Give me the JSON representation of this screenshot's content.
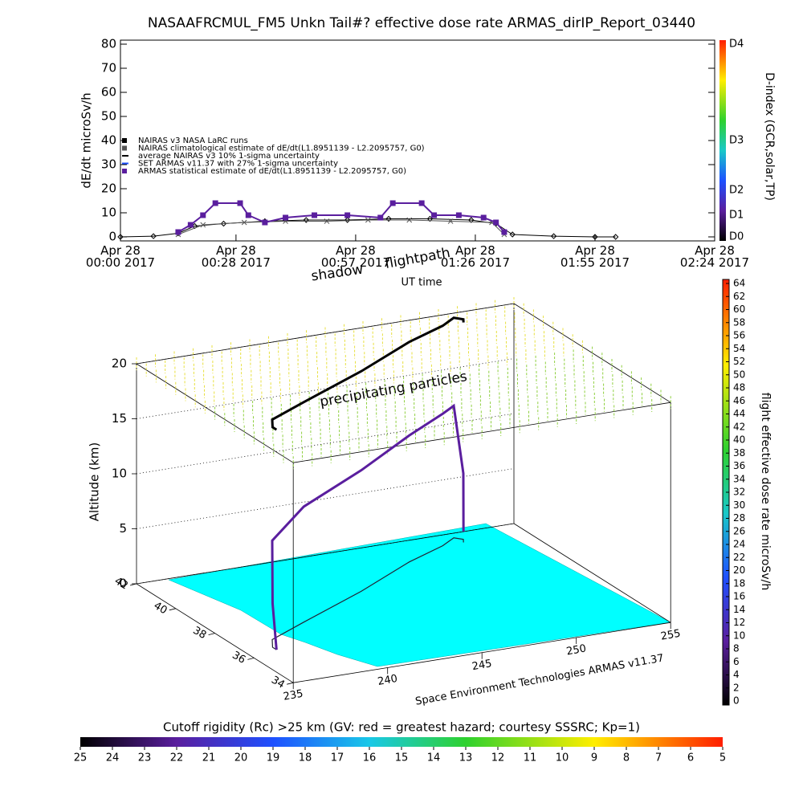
{
  "chart_data": [
    {
      "type": "line",
      "title": "NASAAFRCMUL_FM5 Unkn Tail#? effective dose rate ARMAS_dirIP_Report_03440",
      "y_label": "dE/dt microSv/h",
      "x_label": "UT time",
      "xlim": [
        "2017-04-28T00:00",
        "2017-04-28T02:24"
      ],
      "xticks": [
        {
          "value": "2017-04-28T00:00",
          "label": "Apr 28\n00:00 2017"
        },
        {
          "value": "2017-04-28T00:28",
          "label": "Apr 28\n00:28 2017"
        },
        {
          "value": "2017-04-28T00:57",
          "label": "Apr 28\n00:57 2017"
        },
        {
          "value": "2017-04-28T01:26",
          "label": "Apr 28\n01:26 2017"
        },
        {
          "value": "2017-04-28T01:55",
          "label": "Apr 28\n01:55 2017"
        },
        {
          "value": "2017-04-28T02:24",
          "label": "Apr 28\n02:24 2017"
        }
      ],
      "ylim": [
        0,
        80
      ],
      "yticks": [
        0,
        10,
        20,
        30,
        40,
        50,
        60,
        70,
        80
      ],
      "series": [
        {
          "name": "NAIRAS v3 NASA LaRC runs",
          "color": "#000000",
          "marker": "diamond",
          "x": [
            "2017-04-28T00:00",
            "2017-04-28T00:08",
            "2017-04-28T00:14",
            "2017-04-28T00:18",
            "2017-04-28T00:25",
            "2017-04-28T00:35",
            "2017-04-28T00:45",
            "2017-04-28T00:55",
            "2017-04-28T01:05",
            "2017-04-28T01:15",
            "2017-04-28T01:25",
            "2017-04-28T01:31",
            "2017-04-28T01:35",
            "2017-04-28T01:45",
            "2017-04-28T01:55",
            "2017-04-28T02:00"
          ],
          "values": [
            0,
            0.3,
            1.5,
            4.5,
            5.5,
            6.5,
            7,
            7,
            7.5,
            7.5,
            7,
            5.5,
            1,
            0.3,
            0,
            0
          ]
        },
        {
          "name": "NAIRAS climatological estimate of dE/dt(L1.8951139 - L2.2095757, G0)",
          "color": "#555555",
          "marker": "cross",
          "x": [
            "2017-04-28T00:14",
            "2017-04-28T00:20",
            "2017-04-28T00:30",
            "2017-04-28T00:40",
            "2017-04-28T00:50",
            "2017-04-28T01:00",
            "2017-04-28T01:10",
            "2017-04-28T01:20",
            "2017-04-28T01:30",
            "2017-04-28T01:33"
          ],
          "values": [
            1,
            5,
            6,
            6.5,
            6.5,
            7,
            7,
            6.5,
            6,
            1
          ]
        },
        {
          "name": "ARMAS statistical estimate of dE/dt(L1.8951139 - L2.2095757, G0)",
          "color": "#5a1e9e",
          "marker": "square",
          "x": [
            "2017-04-28T00:14",
            "2017-04-28T00:17",
            "2017-04-28T00:20",
            "2017-04-28T00:23",
            "2017-04-28T00:29",
            "2017-04-28T00:31",
            "2017-04-28T00:35",
            "2017-04-28T00:40",
            "2017-04-28T00:47",
            "2017-04-28T00:55",
            "2017-04-28T01:03",
            "2017-04-28T01:06",
            "2017-04-28T01:13",
            "2017-04-28T01:16",
            "2017-04-28T01:22",
            "2017-04-28T01:28",
            "2017-04-28T01:31",
            "2017-04-28T01:33"
          ],
          "values": [
            2,
            5,
            9,
            14,
            14,
            9,
            6,
            8,
            9,
            9,
            8,
            14,
            14,
            9,
            9,
            8,
            6,
            2
          ]
        }
      ],
      "legend_notes": [
        "average NAIRAS v3 10% 1-sigma uncertainty",
        "SET ARMAS v11.37 with 27% 1-sigma uncertainty"
      ],
      "colorbar": {
        "label": "D-index (GCR,solar,TP)",
        "ticks": [
          "D4",
          "D3",
          "D2",
          "D1",
          "D0"
        ]
      }
    },
    {
      "type": "3d",
      "annotations": [
        "shadow",
        "flightpath",
        "precipitating particles"
      ],
      "z_label": "Altitude (km)",
      "zlim": [
        0,
        20
      ],
      "zticks": [
        0,
        5,
        10,
        15,
        20
      ],
      "xlim": [
        235,
        255
      ],
      "xticks": [
        235,
        240,
        245,
        250,
        255
      ],
      "ylim": [
        34,
        42
      ],
      "yticks": [
        42,
        40,
        38,
        36,
        34
      ],
      "credit": "Space Environment Technologies ARMAS v11.37",
      "flight": {
        "lon": [
          236.5,
          236.5,
          237,
          239.5,
          244,
          248,
          250.5,
          251.5,
          251.8,
          251.6
        ],
        "lat": [
          36.3,
          36.5,
          37,
          37.8,
          39.2,
          40.6,
          41.3,
          41.7,
          41.5,
          41.3
        ],
        "alt": [
          0,
          4,
          9,
          10.5,
          11,
          11.5,
          12,
          12,
          6,
          1
        ]
      },
      "colorbar": {
        "label": "flight effective dose rate microSv/h",
        "clim": [
          0,
          64
        ],
        "ticks": [
          0,
          2,
          4,
          6,
          8,
          10,
          12,
          14,
          16,
          18,
          20,
          22,
          24,
          26,
          28,
          30,
          32,
          34,
          36,
          38,
          40,
          42,
          44,
          46,
          48,
          50,
          52,
          54,
          56,
          58,
          60,
          62,
          64
        ]
      },
      "rigidity_colorbar": {
        "title": "Cutoff rigidity (Rc) >25 km (GV: red = greatest hazard; courtesy SSSRC; Kp=1)",
        "clim": [
          25,
          5
        ],
        "ticks": [
          25,
          24,
          23,
          22,
          21,
          20,
          19,
          18,
          17,
          16,
          15,
          14,
          13,
          12,
          11,
          10,
          9,
          8,
          7,
          6,
          5
        ]
      }
    }
  ]
}
